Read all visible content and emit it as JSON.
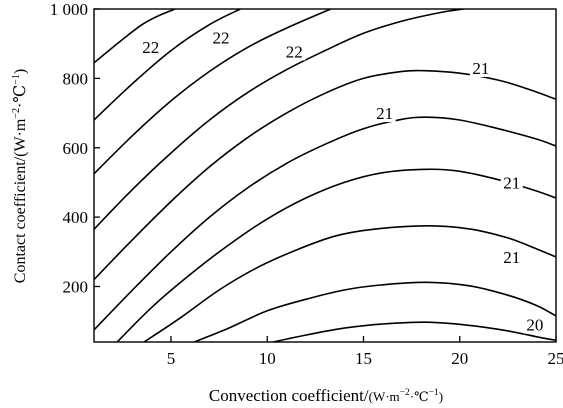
{
  "chart_data": {
    "type": "contour",
    "title": "",
    "xlabel_main": "Convection coefficient/",
    "xlabel_unit": "(W·m",
    "xlabel_exp1": "−2",
    "xlabel_mid": "·℃",
    "xlabel_exp2": "−1",
    "xlabel_end": ")",
    "ylabel_main": "Contact coefficient/(W·m",
    "ylabel_exp1": "−2",
    "ylabel_mid": "·℃",
    "ylabel_exp2": "−1",
    "ylabel_end": ")",
    "xlim": [
      1,
      25
    ],
    "ylim": [
      40,
      1000
    ],
    "xticks": [
      5,
      10,
      15,
      20,
      25
    ],
    "yticks": [
      200,
      400,
      600,
      800,
      1000
    ],
    "ytick_labels": [
      "200",
      "400",
      "600",
      "800",
      "1 000"
    ],
    "grid": false,
    "contours": [
      {
        "points": [
          [
            1,
            845
          ],
          [
            3.5,
            955
          ],
          [
            5.2,
            1000
          ]
        ]
      },
      {
        "points": [
          [
            1,
            680
          ],
          [
            3,
            785
          ],
          [
            5,
            880
          ],
          [
            7,
            955
          ],
          [
            8.6,
            1000
          ]
        ]
      },
      {
        "points": [
          [
            1,
            525
          ],
          [
            3,
            635
          ],
          [
            5,
            735
          ],
          [
            7,
            820
          ],
          [
            9,
            890
          ],
          [
            11,
            945
          ],
          [
            13.3,
            1000
          ]
        ]
      },
      {
        "points": [
          [
            1,
            365
          ],
          [
            3,
            480
          ],
          [
            5,
            585
          ],
          [
            7,
            680
          ],
          [
            9,
            760
          ],
          [
            11,
            825
          ],
          [
            13,
            880
          ],
          [
            15,
            930
          ],
          [
            17,
            965
          ],
          [
            19,
            990
          ],
          [
            20.2,
            1000
          ]
        ]
      },
      {
        "points": [
          [
            1,
            220
          ],
          [
            3,
            335
          ],
          [
            5,
            445
          ],
          [
            7,
            545
          ],
          [
            9,
            630
          ],
          [
            11,
            700
          ],
          [
            13,
            757
          ],
          [
            15,
            800
          ],
          [
            17,
            820
          ],
          [
            18.2,
            822
          ],
          [
            20,
            815
          ],
          [
            22,
            795
          ],
          [
            23.5,
            770
          ],
          [
            25,
            740
          ]
        ]
      },
      {
        "points": [
          [
            1,
            75
          ],
          [
            3,
            190
          ],
          [
            5,
            300
          ],
          [
            7,
            400
          ],
          [
            9,
            485
          ],
          [
            11,
            555
          ],
          [
            13,
            610
          ],
          [
            15,
            655
          ],
          [
            17,
            682
          ],
          [
            18.3,
            688
          ],
          [
            20,
            680
          ],
          [
            22,
            655
          ],
          [
            24,
            625
          ],
          [
            25,
            605
          ]
        ]
      },
      {
        "points": [
          [
            2.2,
            40
          ],
          [
            4,
            140
          ],
          [
            6,
            235
          ],
          [
            8,
            320
          ],
          [
            10,
            395
          ],
          [
            12,
            455
          ],
          [
            14,
            500
          ],
          [
            16,
            528
          ],
          [
            18.3,
            538
          ],
          [
            20,
            532
          ],
          [
            22,
            508
          ],
          [
            24,
            475
          ],
          [
            25,
            455
          ]
        ]
      },
      {
        "points": [
          [
            3.6,
            40
          ],
          [
            5.5,
            110
          ],
          [
            7.5,
            190
          ],
          [
            9.5,
            255
          ],
          [
            11.5,
            305
          ],
          [
            13.5,
            345
          ],
          [
            15.5,
            365
          ],
          [
            18.3,
            375
          ],
          [
            20.5,
            366
          ],
          [
            22.5,
            340
          ],
          [
            24,
            308
          ],
          [
            25,
            285
          ]
        ]
      },
      {
        "points": [
          [
            6.2,
            40
          ],
          [
            8,
            80
          ],
          [
            10,
            130
          ],
          [
            12,
            163
          ],
          [
            14,
            190
          ],
          [
            16,
            205
          ],
          [
            18.3,
            212
          ],
          [
            20.5,
            202
          ],
          [
            22.5,
            175
          ],
          [
            24,
            145
          ],
          [
            25,
            115
          ]
        ]
      },
      {
        "points": [
          [
            10.3,
            40
          ],
          [
            12,
            60
          ],
          [
            14,
            80
          ],
          [
            16,
            92
          ],
          [
            18.3,
            97
          ],
          [
            20.5,
            88
          ],
          [
            22.5,
            72
          ],
          [
            24,
            55
          ],
          [
            25,
            45
          ]
        ]
      }
    ],
    "labels": [
      {
        "text": "22",
        "x": 3.95,
        "y": 890
      },
      {
        "text": "22",
        "x": 7.6,
        "y": 918
      },
      {
        "text": "22",
        "x": 11.4,
        "y": 878
      },
      {
        "text": "21",
        "x": 21.1,
        "y": 830
      },
      {
        "text": "21",
        "x": 16.1,
        "y": 700
      },
      {
        "text": "21",
        "x": 22.7,
        "y": 500
      },
      {
        "text": "21",
        "x": 22.7,
        "y": 285
      },
      {
        "text": "20",
        "x": 23.9,
        "y": 90
      }
    ]
  }
}
